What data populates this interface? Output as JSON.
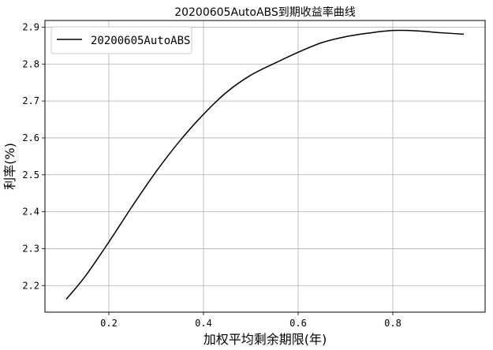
{
  "chart_data": {
    "type": "line",
    "title": "20200605AutoABS到期收益率曲线",
    "xlabel": "加权平均剩余期限(年)",
    "ylabel": "利率(%)",
    "xlim": [
      0.065,
      0.995
    ],
    "ylim": [
      2.128,
      2.918
    ],
    "xticks": [
      0.2,
      0.4,
      0.6,
      0.8
    ],
    "xtick_labels": [
      "0.2",
      "0.4",
      "0.6",
      "0.8"
    ],
    "yticks": [
      2.2,
      2.3,
      2.4,
      2.5,
      2.6,
      2.7,
      2.8,
      2.9
    ],
    "ytick_labels": [
      "2.2",
      "2.3",
      "2.4",
      "2.5",
      "2.6",
      "2.7",
      "2.8",
      "2.9"
    ],
    "grid": true,
    "legend_position": "top-left",
    "series": [
      {
        "name": "20200605AutoABS",
        "color": "#000000",
        "x": [
          0.11,
          0.15,
          0.2,
          0.25,
          0.3,
          0.35,
          0.4,
          0.45,
          0.5,
          0.55,
          0.6,
          0.65,
          0.7,
          0.75,
          0.8,
          0.85,
          0.9,
          0.95
        ],
        "y": [
          2.163,
          2.225,
          2.318,
          2.416,
          2.509,
          2.592,
          2.664,
          2.725,
          2.77,
          2.802,
          2.832,
          2.858,
          2.874,
          2.884,
          2.891,
          2.89,
          2.885,
          2.881
        ]
      }
    ]
  }
}
